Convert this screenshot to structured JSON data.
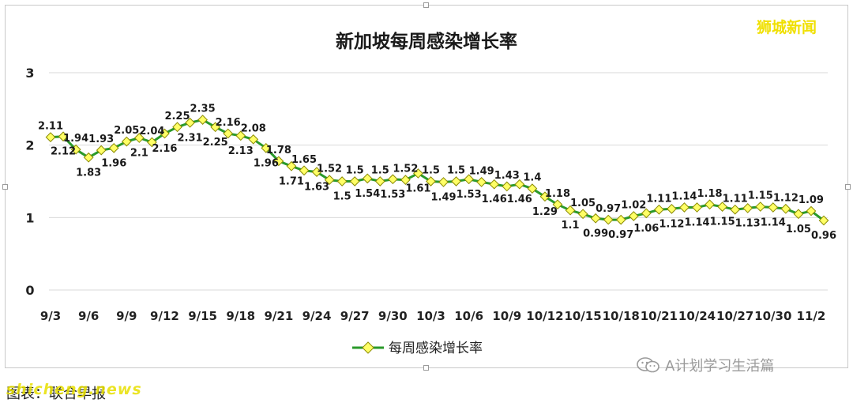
{
  "watermark": "狮城新闻",
  "wechat_label": "A计划学习生活篇",
  "caption": "图表：联合早报",
  "site_watermark": "shicheng.news",
  "icons": {
    "wechat": "wechat-icon"
  },
  "colors": {
    "line": "#2a9a2a",
    "marker_fill": "#ffff66",
    "marker_stroke": "#8a8a00",
    "grid": "#d9d9d9"
  },
  "chart_data": {
    "type": "line",
    "title": "新加坡每周感染增长率",
    "xlabel": "",
    "ylabel": "",
    "ylim": [
      0,
      3
    ],
    "yticks": [
      "0",
      "1",
      "2",
      "3"
    ],
    "grid": true,
    "legend_position": "bottom",
    "x_tick_labels": [
      "9/3",
      "9/6",
      "9/9",
      "9/12",
      "9/15",
      "9/18",
      "9/21",
      "9/24",
      "9/27",
      "9/30",
      "10/3",
      "10/6",
      "10/9",
      "10/12",
      "10/15",
      "10/18",
      "10/21",
      "10/24",
      "10/27",
      "10/30",
      "11/2"
    ],
    "series": [
      {
        "name": "每周感染增长率",
        "values": [
          2.11,
          2.12,
          1.94,
          1.83,
          1.93,
          1.96,
          2.05,
          2.1,
          2.04,
          2.16,
          2.25,
          2.31,
          2.35,
          2.25,
          2.16,
          2.13,
          2.08,
          1.96,
          1.78,
          1.71,
          1.65,
          1.63,
          1.52,
          1.5,
          1.5,
          1.54,
          1.5,
          1.53,
          1.52,
          1.61,
          1.5,
          1.49,
          1.5,
          1.53,
          1.49,
          1.46,
          1.43,
          1.46,
          1.4,
          1.29,
          1.18,
          1.1,
          1.05,
          0.99,
          0.97,
          0.97,
          1.02,
          1.06,
          1.11,
          1.12,
          1.14,
          1.14,
          1.18,
          1.15,
          1.11,
          1.13,
          1.15,
          1.14,
          1.12,
          1.05,
          1.09,
          0.96
        ],
        "labels": [
          "2.11",
          "2.12",
          "1.94",
          "1.83",
          "1.93",
          "1.96",
          "2.05",
          "2.1",
          "2.04",
          "2.16",
          "2.25",
          "2.31",
          "2.35",
          "2.25",
          "2.16",
          "2.13",
          "2.08",
          "1.96",
          "1.78",
          "1.71",
          "1.65",
          "1.63",
          "1.52",
          "1.5",
          "1.5",
          "1.54",
          "1.5",
          "1.53",
          "1.52",
          "1.61",
          "1.5",
          "1.49",
          "1.5",
          "1.53",
          "1.49",
          "1.46",
          "1.43",
          "1.46",
          "1.4",
          "1.29",
          "1.18",
          "1.1",
          "1.05",
          "0.99",
          "0.97",
          "0.97",
          "1.02",
          "1.06",
          "1.11",
          "1.12",
          "1.14",
          "1.14",
          "1.18",
          "1.15",
          "1.11",
          "1.13",
          "1.15",
          "1.14",
          "1.12",
          "1.05",
          "1.09",
          "0.96"
        ],
        "label_positions": [
          "above",
          "below",
          "above",
          "below",
          "above",
          "below",
          "above",
          "below",
          "above",
          "below",
          "above",
          "below",
          "above",
          "below",
          "above",
          "below",
          "above",
          "below",
          "above",
          "below",
          "above",
          "below",
          "above",
          "below",
          "above",
          "below",
          "above",
          "below",
          "above",
          "below",
          "above",
          "below",
          "above",
          "below",
          "above",
          "below",
          "above",
          "below",
          "above",
          "below",
          "above",
          "below",
          "above",
          "below",
          "above",
          "below",
          "above",
          "below",
          "above",
          "below",
          "above",
          "below",
          "above",
          "below",
          "above",
          "below",
          "above",
          "below",
          "above",
          "below",
          "above",
          "below"
        ]
      }
    ]
  }
}
